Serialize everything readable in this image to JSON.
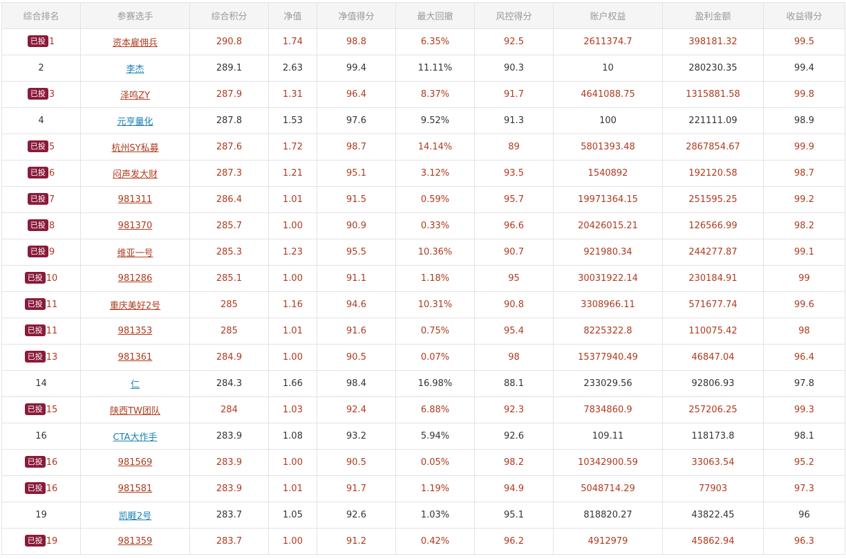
{
  "table": {
    "headers": [
      "综合排名",
      "参赛选手",
      "综合积分",
      "净值",
      "净值得分",
      "最大回撤",
      "风控得分",
      "账户权益",
      "盈利金额",
      "收益得分"
    ],
    "badge_label": "已投",
    "rows": [
      {
        "invested": true,
        "rank": "1",
        "name": "资本雇佣兵",
        "score": "290.8",
        "nav": "1.74",
        "nav_score": "98.8",
        "max_drawdown": "6.35%",
        "risk_score": "92.5",
        "equity": "2611374.7",
        "profit": "398181.32",
        "return_score": "99.5"
      },
      {
        "invested": false,
        "rank": "2",
        "name": "李杰",
        "score": "289.1",
        "nav": "2.63",
        "nav_score": "99.4",
        "max_drawdown": "11.11%",
        "risk_score": "90.3",
        "equity": "10",
        "profit": "280230.35",
        "return_score": "99.4"
      },
      {
        "invested": true,
        "rank": "3",
        "name": "泽鸣ZY",
        "score": "287.9",
        "nav": "1.31",
        "nav_score": "96.4",
        "max_drawdown": "8.37%",
        "risk_score": "91.7",
        "equity": "4641088.75",
        "profit": "1315881.58",
        "return_score": "99.8"
      },
      {
        "invested": false,
        "rank": "4",
        "name": "元亨量化",
        "score": "287.8",
        "nav": "1.53",
        "nav_score": "97.6",
        "max_drawdown": "9.52%",
        "risk_score": "91.3",
        "equity": "100",
        "profit": "221111.09",
        "return_score": "98.9"
      },
      {
        "invested": true,
        "rank": "5",
        "name": "杭州SY私募",
        "score": "287.6",
        "nav": "1.72",
        "nav_score": "98.7",
        "max_drawdown": "14.14%",
        "risk_score": "89",
        "equity": "5801393.48",
        "profit": "2867854.67",
        "return_score": "99.9"
      },
      {
        "invested": true,
        "rank": "6",
        "name": "闷声发大财",
        "score": "287.3",
        "nav": "1.21",
        "nav_score": "95.1",
        "max_drawdown": "3.12%",
        "risk_score": "93.5",
        "equity": "1540892",
        "profit": "192120.58",
        "return_score": "98.7"
      },
      {
        "invested": true,
        "rank": "7",
        "name": "981311",
        "score": "286.4",
        "nav": "1.01",
        "nav_score": "91.5",
        "max_drawdown": "0.59%",
        "risk_score": "95.7",
        "equity": "19971364.15",
        "profit": "251595.25",
        "return_score": "99.2"
      },
      {
        "invested": true,
        "rank": "8",
        "name": "981370",
        "score": "285.7",
        "nav": "1.00",
        "nav_score": "90.9",
        "max_drawdown": "0.33%",
        "risk_score": "96.6",
        "equity": "20426015.21",
        "profit": "126566.99",
        "return_score": "98.2"
      },
      {
        "invested": true,
        "rank": "9",
        "name": "维亚一号",
        "score": "285.3",
        "nav": "1.23",
        "nav_score": "95.5",
        "max_drawdown": "10.36%",
        "risk_score": "90.7",
        "equity": "921980.34",
        "profit": "244277.87",
        "return_score": "99.1"
      },
      {
        "invested": true,
        "rank": "10",
        "name": "981286",
        "score": "285.1",
        "nav": "1.00",
        "nav_score": "91.1",
        "max_drawdown": "1.18%",
        "risk_score": "95",
        "equity": "30031922.14",
        "profit": "230184.91",
        "return_score": "99"
      },
      {
        "invested": true,
        "rank": "11",
        "name": "重庆美好2号",
        "score": "285",
        "nav": "1.16",
        "nav_score": "94.6",
        "max_drawdown": "10.31%",
        "risk_score": "90.8",
        "equity": "3308966.11",
        "profit": "571677.74",
        "return_score": "99.6"
      },
      {
        "invested": true,
        "rank": "11",
        "name": "981353",
        "score": "285",
        "nav": "1.01",
        "nav_score": "91.6",
        "max_drawdown": "0.75%",
        "risk_score": "95.4",
        "equity": "8225322.8",
        "profit": "110075.42",
        "return_score": "98"
      },
      {
        "invested": true,
        "rank": "13",
        "name": "981361",
        "score": "284.9",
        "nav": "1.00",
        "nav_score": "90.5",
        "max_drawdown": "0.07%",
        "risk_score": "98",
        "equity": "15377940.49",
        "profit": "46847.04",
        "return_score": "96.4"
      },
      {
        "invested": false,
        "rank": "14",
        "name": "仁",
        "score": "284.3",
        "nav": "1.66",
        "nav_score": "98.4",
        "max_drawdown": "16.98%",
        "risk_score": "88.1",
        "equity": "233029.56",
        "profit": "92806.93",
        "return_score": "97.8"
      },
      {
        "invested": true,
        "rank": "15",
        "name": "陕西TW团队",
        "score": "284",
        "nav": "1.03",
        "nav_score": "92.4",
        "max_drawdown": "6.88%",
        "risk_score": "92.3",
        "equity": "7834860.9",
        "profit": "257206.25",
        "return_score": "99.3"
      },
      {
        "invested": false,
        "rank": "16",
        "name": "CTA大作手",
        "score": "283.9",
        "nav": "1.08",
        "nav_score": "93.2",
        "max_drawdown": "5.94%",
        "risk_score": "92.6",
        "equity": "109.11",
        "profit": "118173.8",
        "return_score": "98.1"
      },
      {
        "invested": true,
        "rank": "16",
        "name": "981569",
        "score": "283.9",
        "nav": "1.00",
        "nav_score": "90.5",
        "max_drawdown": "0.05%",
        "risk_score": "98.2",
        "equity": "10342900.59",
        "profit": "33063.54",
        "return_score": "95.2"
      },
      {
        "invested": true,
        "rank": "16",
        "name": "981581",
        "score": "283.9",
        "nav": "1.01",
        "nav_score": "91.7",
        "max_drawdown": "1.19%",
        "risk_score": "94.9",
        "equity": "5048714.29",
        "profit": "77903",
        "return_score": "97.3"
      },
      {
        "invested": false,
        "rank": "19",
        "name": "凯睚2号",
        "score": "283.7",
        "nav": "1.05",
        "nav_score": "92.6",
        "max_drawdown": "1.03%",
        "risk_score": "95.1",
        "equity": "818820.27",
        "profit": "43822.45",
        "return_score": "96"
      },
      {
        "invested": true,
        "rank": "19",
        "name": "981359",
        "score": "283.7",
        "nav": "1.00",
        "nav_score": "91.2",
        "max_drawdown": "0.42%",
        "risk_score": "96.2",
        "equity": "4912979",
        "profit": "45862.94",
        "return_score": "96.3"
      }
    ]
  },
  "colors": {
    "invested_text": "#b03a1e",
    "plain_text": "#333333",
    "plain_link": "#1a80b6",
    "badge_bg": "#8a1b3a",
    "header_bg": "#f5f5f5",
    "header_text": "#999999",
    "border": "#e3e3e3"
  }
}
